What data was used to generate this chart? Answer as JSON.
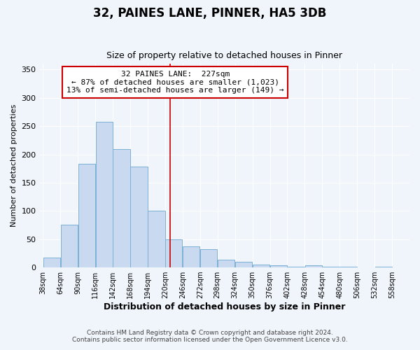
{
  "title": "32, PAINES LANE, PINNER, HA5 3DB",
  "subtitle": "Size of property relative to detached houses in Pinner",
  "xlabel": "Distribution of detached houses by size in Pinner",
  "ylabel": "Number of detached properties",
  "bar_left_edges": [
    38,
    64,
    90,
    116,
    142,
    168,
    194,
    220,
    246,
    272,
    298,
    324,
    350,
    376,
    402,
    428,
    454,
    480,
    506,
    532
  ],
  "bar_heights": [
    18,
    76,
    183,
    258,
    209,
    178,
    101,
    50,
    37,
    32,
    14,
    10,
    5,
    4,
    1,
    4,
    1,
    1,
    0,
    1
  ],
  "bin_width": 26,
  "bar_color": "#c9d9f0",
  "bar_edge_color": "#7ab0d4",
  "vline_x": 227,
  "vline_color": "#cc0000",
  "annotation_line1": "32 PAINES LANE:  227sqm",
  "annotation_line2": "← 87% of detached houses are smaller (1,023)",
  "annotation_line3": "13% of semi-detached houses are larger (149) →",
  "xlim_left": 33,
  "xlim_right": 584,
  "ylim_top": 360,
  "tick_labels": [
    "38sqm",
    "64sqm",
    "90sqm",
    "116sqm",
    "142sqm",
    "168sqm",
    "194sqm",
    "220sqm",
    "246sqm",
    "272sqm",
    "298sqm",
    "324sqm",
    "350sqm",
    "376sqm",
    "402sqm",
    "428sqm",
    "454sqm",
    "480sqm",
    "506sqm",
    "532sqm",
    "558sqm"
  ],
  "tick_positions": [
    38,
    64,
    90,
    116,
    142,
    168,
    194,
    220,
    246,
    272,
    298,
    324,
    350,
    376,
    402,
    428,
    454,
    480,
    506,
    532,
    558
  ],
  "yticks": [
    0,
    50,
    100,
    150,
    200,
    250,
    300,
    350
  ],
  "footer1": "Contains HM Land Registry data © Crown copyright and database right 2024.",
  "footer2": "Contains public sector information licensed under the Open Government Licence v3.0.",
  "bg_color": "#f0f4fb",
  "plot_bg_color": "#f0f4fb",
  "grid_color": "#ffffff",
  "title_fontsize": 12,
  "subtitle_fontsize": 9
}
